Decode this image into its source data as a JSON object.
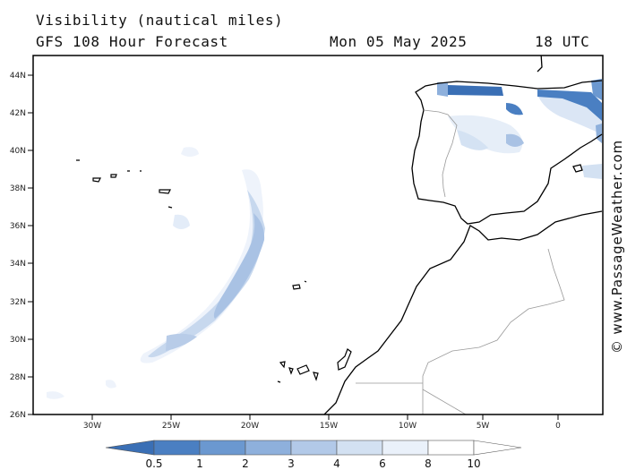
{
  "header": {
    "title": "Visibility (nautical miles)",
    "model": "GFS 108 Hour Forecast",
    "date": "Mon 05 May 2025",
    "time": "18 UTC"
  },
  "map": {
    "lat_labels": [
      "44N",
      "42N",
      "40N",
      "38N",
      "36N",
      "34N",
      "32N",
      "30N",
      "28N",
      "26N"
    ],
    "lon_labels": [
      "30W",
      "25W",
      "20W",
      "15W",
      "10W",
      "5W",
      "0"
    ],
    "region": "North Atlantic - Iberia, Morocco, Azores, Madeira, Canary Islands",
    "lat_range": [
      26,
      45
    ],
    "lon_range": [
      -35,
      3
    ]
  },
  "legend": {
    "values": [
      "0.5",
      "1",
      "2",
      "3",
      "4",
      "6",
      "8",
      "10"
    ],
    "colors": [
      "#3a6fb5",
      "#4a7fc2",
      "#6b98d0",
      "#8eb0dc",
      "#b2c9e8",
      "#d3e1f2",
      "#eaf1fa",
      "#ffffff"
    ]
  },
  "credit": "© www.PassageWeather.com"
}
